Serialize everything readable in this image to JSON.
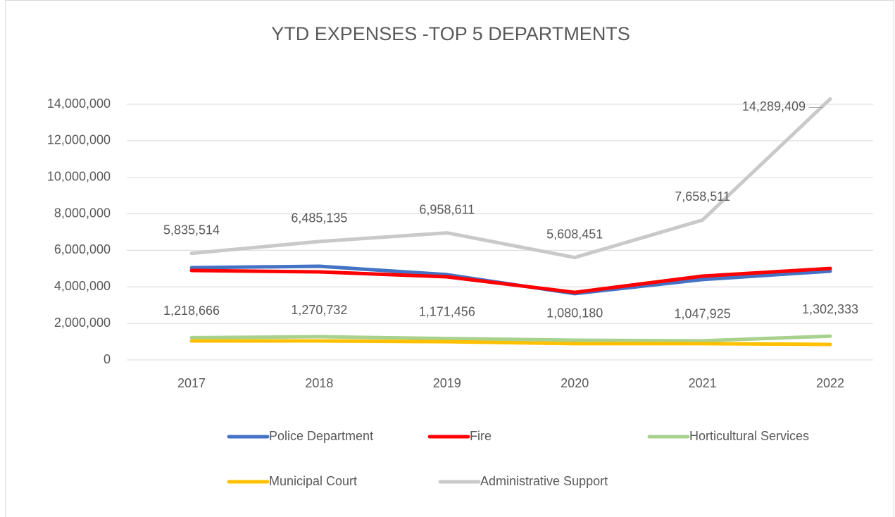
{
  "chart_data": {
    "type": "line",
    "title": "YTD EXPENSES -TOP 5 DEPARTMENTS",
    "categories": [
      "2017",
      "2018",
      "2019",
      "2020",
      "2021",
      "2022"
    ],
    "series": [
      {
        "name": "Police Department",
        "color": "#4472c4",
        "values": [
          5050000,
          5130000,
          4670000,
          3630000,
          4400000,
          4860000
        ]
      },
      {
        "name": "Fire",
        "color": "#ff0000",
        "values": [
          4900000,
          4820000,
          4550000,
          3700000,
          4590000,
          5010000
        ]
      },
      {
        "name": "Horticultural Services",
        "color": "#a9d18e",
        "values": [
          1218666,
          1270732,
          1171456,
          1080180,
          1047925,
          1302333
        ],
        "value_labels": [
          "1,218,666",
          "1,270,732",
          "1,171,456",
          "1,080,180",
          "1,047,925",
          "1,302,333"
        ]
      },
      {
        "name": "Municipal Court",
        "color": "#ffc000",
        "values": [
          1040000,
          1040000,
          1000000,
          890000,
          890000,
          850000
        ]
      },
      {
        "name": "Administrative Support",
        "color": "#c9c9c9",
        "values": [
          5835514,
          6485135,
          6958611,
          5608451,
          7658511,
          14289409
        ],
        "value_labels": [
          "5,835,514",
          "6,485,135",
          "6,958,611",
          "5,608,451",
          "7,658,511",
          "14,289,409"
        ]
      }
    ],
    "ylim": [
      0,
      14000000
    ],
    "yticks": [
      0,
      {
        "value": 2000000,
        "label": "2,000,000"
      },
      {
        "value": 4000000,
        "label": "4,000,000"
      },
      {
        "value": 6000000,
        "label": "6,000,000"
      },
      {
        "value": 8000000,
        "label": "8,000,000"
      },
      {
        "value": 10000000,
        "label": "10,000,000"
      },
      {
        "value": 12000000,
        "label": "12,000,000"
      },
      {
        "value": 14000000,
        "label": "14,000,000"
      }
    ],
    "grid": true
  }
}
